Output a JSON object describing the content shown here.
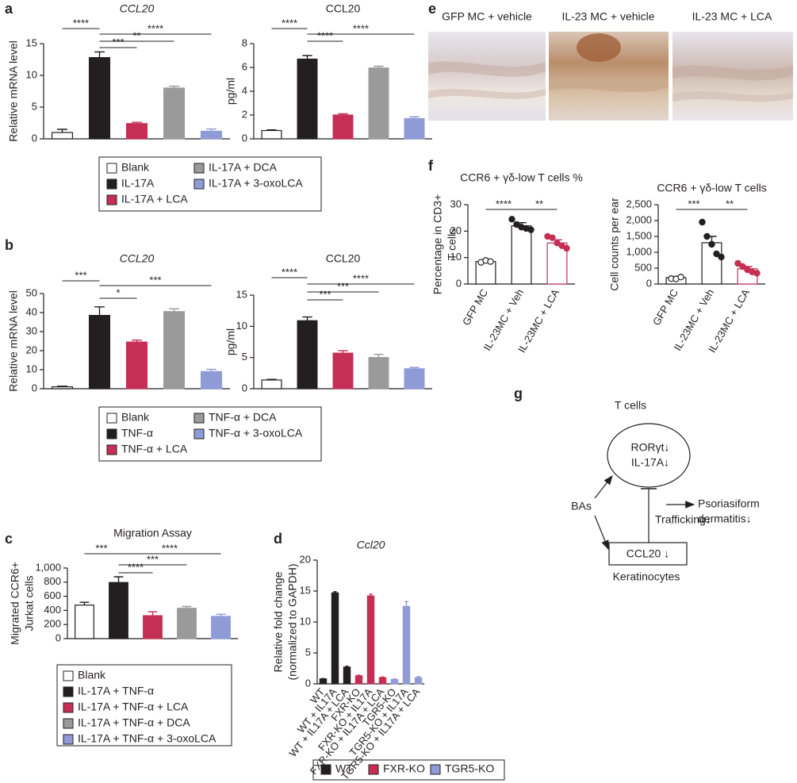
{
  "panel_labels": [
    "a",
    "b",
    "c",
    "d",
    "e",
    "f",
    "g"
  ],
  "chart_data": [
    {
      "type": "bar",
      "title": "CCL20",
      "title_italic": true,
      "ylabel": [
        "Relative mRNA level"
      ],
      "categories": [
        "Blank",
        "IL-17A",
        "IL-17A + LCA",
        "IL-17A + DCA",
        "IL-17A + 3-oxoLCA"
      ],
      "values": [
        1,
        12.8,
        2.4,
        8,
        1.2
      ],
      "errors": [
        0.5,
        0.9,
        0.2,
        0.3,
        0.35
      ],
      "colors": [
        "#ffffff",
        "#231f20",
        "#c62f55",
        "#9a9a9a",
        "#8f9bd6"
      ],
      "ylim": [
        0,
        15
      ],
      "yticks": [
        0,
        5,
        10,
        15
      ],
      "annotations": [
        "****",
        "****",
        "**",
        "***"
      ],
      "legend": true
    },
    {
      "type": "bar",
      "title": "CCL20",
      "ylabel": [
        "pg/ml"
      ],
      "values": [
        0.7,
        6.7,
        2.0,
        5.95,
        1.7
      ],
      "errors": [
        0.05,
        0.3,
        0.1,
        0.15,
        0.15
      ],
      "colors": [
        "#ffffff",
        "#231f20",
        "#c62f55",
        "#9a9a9a",
        "#8f9bd6"
      ],
      "ylim": [
        0,
        8
      ],
      "yticks": [
        0,
        2,
        4,
        6,
        8
      ],
      "annotations": [
        "****",
        "****",
        "****"
      ]
    },
    {
      "type": "bar",
      "title": "CCL20",
      "title_italic": true,
      "ylabel": [
        "Relative mRNA level"
      ],
      "categories": [
        "Blank",
        "TNF-α",
        "TNF-α + LCA",
        "TNF-α + DCA",
        "TNF-α + 3-oxoLCA"
      ],
      "values": [
        1,
        38.5,
        24.5,
        40.5,
        9
      ],
      "errors": [
        0.3,
        4.5,
        1,
        1.5,
        1.2
      ],
      "colors": [
        "#ffffff",
        "#231f20",
        "#c62f55",
        "#9a9a9a",
        "#8f9bd6"
      ],
      "ylim": [
        0,
        50
      ],
      "yticks": [
        0,
        10,
        20,
        30,
        40,
        50
      ],
      "annotations": [
        "***",
        "***",
        "*"
      ],
      "legend": true
    },
    {
      "type": "bar",
      "title": "CCL20",
      "ylabel": [
        "pg/ml"
      ],
      "values": [
        1.4,
        10.9,
        5.7,
        5.0,
        3.2
      ],
      "errors": [
        0.1,
        0.6,
        0.4,
        0.5,
        0.2
      ],
      "colors": [
        "#ffffff",
        "#231f20",
        "#c62f55",
        "#9a9a9a",
        "#8f9bd6"
      ],
      "ylim": [
        0,
        15
      ],
      "yticks": [
        0,
        5,
        10,
        15
      ],
      "annotations": [
        "****",
        "****",
        "***",
        "***"
      ]
    },
    {
      "type": "bar",
      "title": "Migration Assay",
      "ylabel": [
        "Migrated CCR6+",
        "Jurkat cells"
      ],
      "categories": [
        "Blank",
        "IL-17A + TNF-α",
        "IL-17A + TNF-α + LCA",
        "IL-17A + TNF-α + DCA",
        "IL-17A + TNF-α + 3-oxoLCA"
      ],
      "values": [
        475,
        795,
        325,
        430,
        315
      ],
      "errors": [
        40,
        80,
        55,
        25,
        30
      ],
      "colors": [
        "#ffffff",
        "#231f20",
        "#c62f55",
        "#9a9a9a",
        "#8f9bd6"
      ],
      "ylim": [
        0,
        1000
      ],
      "yticks": [
        0,
        200,
        400,
        600,
        800,
        {
          "value": 1000,
          "label": "1,000"
        }
      ],
      "annotations": [
        "***",
        "****",
        "***",
        "****"
      ],
      "legend": true
    },
    {
      "type": "bar",
      "title": "Ccl20",
      "title_italic": true,
      "ylabel": [
        "Relative fold change",
        "(normalized to GAPDH)"
      ],
      "categories": [
        "WT",
        "WT + IL17A",
        "WT + IL17A + LCA",
        "FXR-KO",
        "FXR-KO + IL17A",
        "FXR-KO + IL17A + LCA",
        "TGR5-KO",
        "TGR5-KO + IL17A",
        "TGR5-KO + IL17A + LCA"
      ],
      "series": [
        {
          "name": "WT",
          "color": "#231f20",
          "values": [
            0.8,
            14.7,
            2.7,
            null,
            null,
            null,
            null,
            null,
            null
          ],
          "errors": [
            0.05,
            0.2,
            0.15,
            null,
            null,
            null,
            null,
            null,
            null
          ]
        },
        {
          "name": "FXR-KO",
          "color": "#c62f55",
          "values": [
            null,
            null,
            null,
            1.3,
            14.2,
            1.0,
            null,
            null,
            null
          ],
          "errors": [
            null,
            null,
            null,
            0.1,
            0.3,
            0.1,
            null,
            null,
            null
          ]
        },
        {
          "name": "TGR5-KO",
          "color": "#8f9bd6",
          "values": [
            null,
            null,
            null,
            null,
            null,
            null,
            0.7,
            12.5,
            1.0
          ],
          "errors": [
            null,
            null,
            null,
            null,
            null,
            null,
            0.1,
            0.8,
            0.2
          ]
        }
      ],
      "ylim": [
        0,
        20
      ],
      "yticks": [
        0,
        5,
        10,
        15,
        20
      ],
      "legend": true
    },
    {
      "type": "bar",
      "title": "CCR6 + γδ-low T cells %",
      "ylabel": [
        "Percentage in CD3+",
        "T cells"
      ],
      "categories": [
        "GFP MC",
        "IL-23MC + Veh",
        "IL-23MC + LCA"
      ],
      "values": [
        8.5,
        22,
        15.5
      ],
      "errors": [
        0.5,
        1.2,
        1.2
      ],
      "colors": [
        "#ffffff",
        "#ffffff",
        "#ffffff"
      ],
      "edge_colors": [
        "#231f20",
        "#231f20",
        "#c62f55"
      ],
      "point_fills": [
        "#ffffff",
        "#231f20",
        "#c62f55"
      ],
      "points": [
        [
          8.2,
          8.9,
          8.5
        ],
        [
          24.5,
          22.5,
          21.5,
          21,
          20.5
        ],
        [
          18,
          17.5,
          15.5,
          14.5,
          13.5
        ]
      ],
      "ylim": [
        0,
        30
      ],
      "yticks": [
        0,
        10,
        20,
        30
      ],
      "annotations": [
        "****",
        "**"
      ]
    },
    {
      "type": "bar",
      "title": "CCR6 + γδ-low T cells",
      "ylabel": [
        "Cell counts per ear"
      ],
      "categories": [
        "GFP MC",
        "IL-23MC + Veh",
        "IL-23MC + LCA"
      ],
      "values": [
        200,
        1300,
        480
      ],
      "errors": [
        30,
        200,
        70
      ],
      "colors": [
        "#ffffff",
        "#ffffff",
        "#ffffff"
      ],
      "edge_colors": [
        "#231f20",
        "#231f20",
        "#c62f55"
      ],
      "point_fills": [
        "#ffffff",
        "#231f20",
        "#c62f55"
      ],
      "points": [
        [
          170,
          160,
          220
        ],
        [
          1950,
          1500,
          1250,
          950,
          850
        ],
        [
          650,
          550,
          450,
          380,
          340
        ]
      ],
      "ylim": [
        0,
        2500
      ],
      "yticks": [
        0,
        500,
        {
          "value": 1000,
          "label": "1,000"
        },
        {
          "value": 1500,
          "label": "1,500"
        },
        {
          "value": 2000,
          "label": "2,000"
        },
        {
          "value": 2500,
          "label": "2,500"
        }
      ],
      "annotations": [
        "***",
        "**"
      ]
    }
  ],
  "images": {
    "labels": [
      "GFP MC + vehicle",
      "IL-23 MC + vehicle",
      "IL-23 MC + LCA"
    ]
  },
  "diagram": {
    "cell_label": "T cells",
    "cell_markers": [
      "RORγt↓",
      "IL-17A↓"
    ],
    "source": "BAs",
    "target_box": "CCL20 ↓",
    "target_label": "Keratinocytes",
    "edge_label": "Trafficking↓",
    "outcome": [
      "Psoriasiform",
      "dermatitis↓"
    ]
  }
}
